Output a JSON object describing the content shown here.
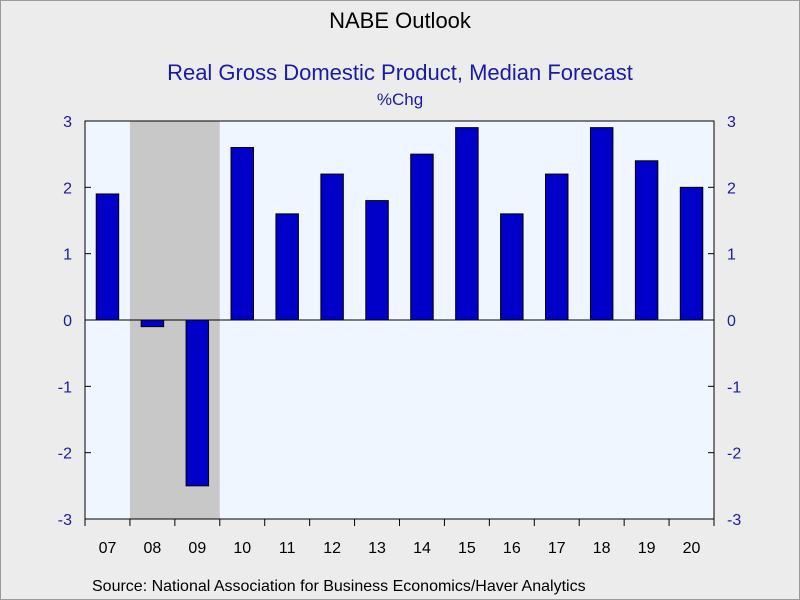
{
  "header": {
    "title": "NABE Outlook",
    "subtitle": "Real Gross Domestic Product, Median Forecast",
    "unit": "%Chg"
  },
  "footer": {
    "source": "Source:  National Association for Business Economics/Haver Analytics"
  },
  "colors": {
    "bar": "#0000c8",
    "plot_bg": "#f0f6ff",
    "recession": "#c8c8c8",
    "axis_text": "#1a1aa8"
  },
  "chart_data": {
    "type": "bar",
    "categories": [
      "07",
      "08",
      "09",
      "10",
      "11",
      "12",
      "13",
      "14",
      "15",
      "16",
      "17",
      "18",
      "19",
      "20"
    ],
    "values": [
      1.9,
      -0.1,
      -2.5,
      2.6,
      1.6,
      2.2,
      1.8,
      2.5,
      2.9,
      1.6,
      2.2,
      2.9,
      2.4,
      2.0
    ],
    "ylim": [
      -3,
      3
    ],
    "yticks": [
      3,
      2,
      1,
      0,
      -1,
      -2,
      -3
    ],
    "shaded_region": [
      "08",
      "09"
    ],
    "grid": false
  }
}
